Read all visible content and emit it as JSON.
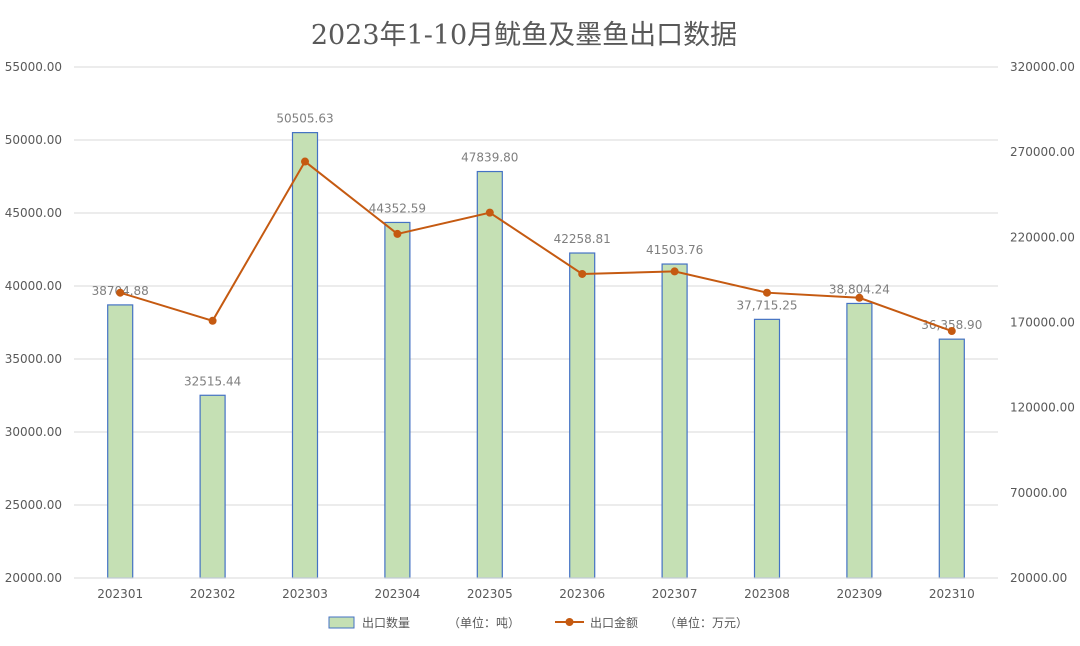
{
  "chart_data": {
    "type": "bar",
    "title": "2023年1-10月鱿鱼及墨鱼出口数据",
    "categories": [
      "202301",
      "202302",
      "202303",
      "202304",
      "202305",
      "202306",
      "202307",
      "202308",
      "202309",
      "202310"
    ],
    "series": [
      {
        "name": "出口数量",
        "unit_label": "（单位：吨）",
        "type": "bar",
        "axis": "left",
        "values": [
          38704.88,
          32515.44,
          50505.63,
          44352.59,
          47839.8,
          42258.81,
          41503.76,
          37715.25,
          38804.24,
          36358.9
        ],
        "labels": [
          "38704.88",
          "32515.44",
          "50505.63",
          "44352.59",
          "47839.80",
          "42258.81",
          "41503.76",
          "37,715.25",
          "38,804.24",
          "36,358.90"
        ],
        "color": "#c5e0b4",
        "border_color": "#4472c4"
      },
      {
        "name": "出口金额",
        "unit_label": "（单位：万元）",
        "type": "line",
        "axis": "right",
        "values": [
          187500,
          171000,
          264500,
          222000,
          234500,
          198500,
          200000,
          187500,
          184500,
          165000
        ],
        "color": "#c55a11"
      }
    ],
    "y_left": {
      "min": 20000,
      "max": 55000,
      "ticks": [
        "20000.00",
        "25000.00",
        "30000.00",
        "35000.00",
        "40000.00",
        "45000.00",
        "50000.00",
        "55000.00"
      ]
    },
    "y_right": {
      "min": 20000,
      "max": 320000,
      "ticks": [
        "20000.00",
        "70000.00",
        "120000.00",
        "170000.00",
        "220000.00",
        "270000.00",
        "320000.00"
      ]
    },
    "grid": true,
    "legend_position": "bottom"
  }
}
